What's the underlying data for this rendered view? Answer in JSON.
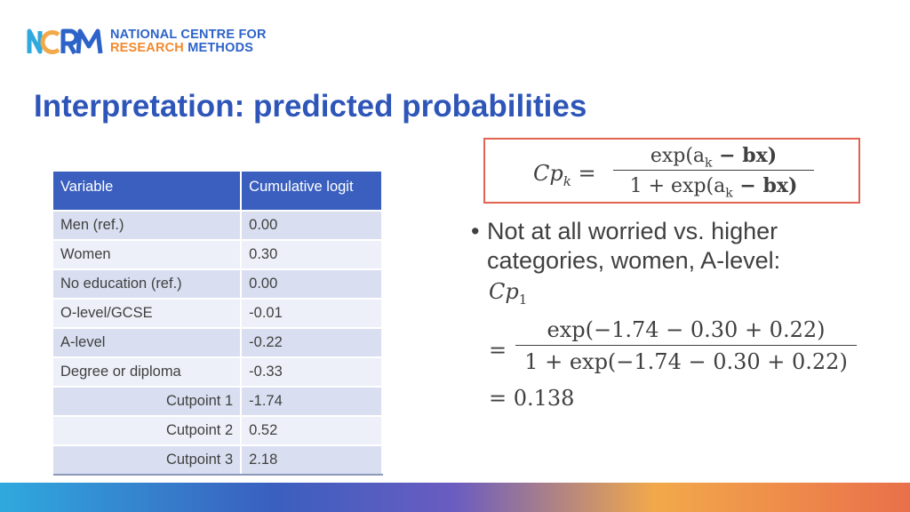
{
  "logo": {
    "line1_a": "NATIONAL",
    "line1_b": "CENTRE FOR",
    "line2_a": "RESEARCH",
    "line2_b": "METHODS"
  },
  "title": "Interpretation: predicted probabilities",
  "table": {
    "headers": [
      "Variable",
      "Cumulative logit"
    ],
    "rows": [
      {
        "variable": "Men (ref.)",
        "value": "0.00"
      },
      {
        "variable": "Women",
        "value": "0.30"
      },
      {
        "variable": "No education (ref.)",
        "value": "0.00"
      },
      {
        "variable": "O-level/GCSE",
        "value": "-0.01"
      },
      {
        "variable": "A-level",
        "value": "-0.22"
      },
      {
        "variable": "Degree or diploma",
        "value": "-0.33"
      },
      {
        "variable": "Cutpoint 1",
        "value": "-1.74"
      },
      {
        "variable": "Cutpoint 2",
        "value": "0.52"
      },
      {
        "variable": "Cutpoint 3",
        "value": "2.18"
      }
    ]
  },
  "formula": {
    "lhs": "Cp",
    "lhs_sub": "k",
    "numerator": "exp(a",
    "numerator_sub": "k",
    "numerator_rest": " − bx)",
    "denominator": "1 + exp(a",
    "denominator_sub": "k",
    "denominator_rest": " − bx)"
  },
  "bullet": {
    "text": "Not at all worried vs. higher categories, women, A-level:",
    "cp_label": "Cp",
    "cp_sub": "1",
    "numerator": "exp(−1.74 − 0.30 + 0.22)",
    "denominator": "1 + exp(−1.74 − 0.30 + 0.22)",
    "result": "= 0.138"
  },
  "colors": {
    "title": "#2e56b8",
    "table_header": "#3a5fbf",
    "formula_border": "#e06450"
  }
}
